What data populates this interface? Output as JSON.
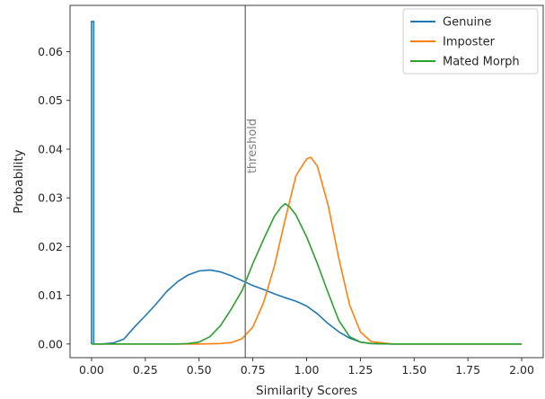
{
  "chart_data": {
    "type": "line",
    "title": "",
    "xlabel": "Similarity Scores",
    "ylabel": "Probability",
    "xlim": [
      -0.1,
      2.1
    ],
    "ylim": [
      -0.0028,
      0.0695
    ],
    "xticks": [
      0.0,
      0.25,
      0.5,
      0.75,
      1.0,
      1.25,
      1.5,
      1.75,
      2.0
    ],
    "xtick_labels": [
      "0.00",
      "0.25",
      "0.50",
      "0.75",
      "1.00",
      "1.25",
      "1.50",
      "1.75",
      "2.00"
    ],
    "yticks": [
      0.0,
      0.01,
      0.02,
      0.03,
      0.04,
      0.05,
      0.06
    ],
    "ytick_labels": [
      "0.00",
      "0.01",
      "0.02",
      "0.03",
      "0.04",
      "0.05",
      "0.06"
    ],
    "grid": false,
    "legend_position": "top-right",
    "threshold": {
      "x": 0.715,
      "label": "threshold",
      "color": "#808080"
    },
    "series": [
      {
        "name": "Genuine",
        "color": "#1f77b4",
        "x": [
          0.0,
          0.0,
          0.01,
          0.01,
          0.02,
          0.05,
          0.1,
          0.15,
          0.2,
          0.25,
          0.3,
          0.35,
          0.4,
          0.45,
          0.5,
          0.55,
          0.6,
          0.65,
          0.7,
          0.75,
          0.8,
          0.85,
          0.9,
          0.95,
          1.0,
          1.05,
          1.1,
          1.15,
          1.2,
          1.25,
          1.3,
          1.4,
          1.6,
          1.8,
          2.0
        ],
        "y": [
          0.0,
          0.0662,
          0.0662,
          0.0,
          0.0,
          0.0,
          0.0002,
          0.001,
          0.0035,
          0.0058,
          0.0082,
          0.0108,
          0.0128,
          0.0142,
          0.015,
          0.0152,
          0.0148,
          0.014,
          0.013,
          0.012,
          0.0112,
          0.0103,
          0.0095,
          0.0088,
          0.0078,
          0.0062,
          0.0042,
          0.0025,
          0.0012,
          0.0004,
          0.0001,
          0.0,
          0.0,
          0.0,
          0.0
        ]
      },
      {
        "name": "Imposter",
        "color": "#ff7f0e",
        "x": [
          0.0,
          0.5,
          0.6,
          0.65,
          0.7,
          0.75,
          0.8,
          0.85,
          0.9,
          0.95,
          1.0,
          1.02,
          1.05,
          1.1,
          1.15,
          1.2,
          1.25,
          1.3,
          1.4,
          1.6,
          2.0
        ],
        "y": [
          0.0,
          0.0,
          0.0001,
          0.0003,
          0.0011,
          0.0035,
          0.0085,
          0.016,
          0.0255,
          0.0345,
          0.038,
          0.0383,
          0.0365,
          0.0285,
          0.0175,
          0.008,
          0.0025,
          0.0005,
          0.0,
          0.0,
          0.0
        ]
      },
      {
        "name": "Mated Morph",
        "color": "#2ca02c",
        "x": [
          0.0,
          0.4,
          0.45,
          0.5,
          0.55,
          0.6,
          0.65,
          0.7,
          0.75,
          0.8,
          0.85,
          0.88,
          0.9,
          0.92,
          0.95,
          1.0,
          1.05,
          1.1,
          1.15,
          1.2,
          1.25,
          1.3,
          1.4,
          1.6,
          2.0
        ],
        "y": [
          0.0,
          0.0,
          0.0001,
          0.0004,
          0.0015,
          0.0038,
          0.0072,
          0.011,
          0.0165,
          0.0215,
          0.0262,
          0.028,
          0.0288,
          0.0282,
          0.0265,
          0.022,
          0.0165,
          0.0105,
          0.0048,
          0.0015,
          0.0004,
          0.0001,
          0.0,
          0.0,
          0.0
        ]
      }
    ]
  }
}
